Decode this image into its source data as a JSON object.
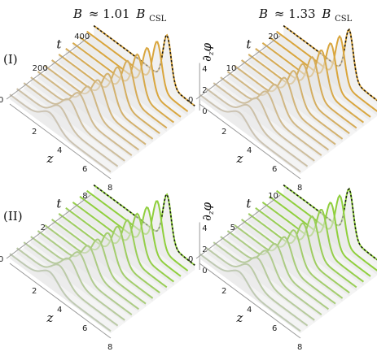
{
  "figure": {
    "column_titles": [
      {
        "var": "B",
        "op": "≈ 1.01",
        "sym": "B",
        "sub": "CSL"
      },
      {
        "var": "B",
        "op": "≈ 1.33",
        "sym": "B",
        "sub": "CSL"
      }
    ],
    "row_labels": [
      "(I)",
      "(II)"
    ]
  },
  "colors": {
    "row1_curve": "#d9a53c",
    "row2_curve": "#8fcf3c",
    "faded": "#c8c8c8",
    "surface": "#e6e6e6",
    "dashed": "#111111"
  },
  "chart_data": [
    {
      "type": "area",
      "panel": "row-I-left",
      "xlabel": "z",
      "ylabel": "t",
      "zlabel": "∂_z φ",
      "z_ticks": [
        "2",
        "4",
        "6",
        "8"
      ],
      "t_ticks": [
        "0",
        "200",
        "400"
      ],
      "v_ticks": [
        "0",
        "2",
        "4"
      ],
      "z_range": [
        0,
        8
      ],
      "t_range": [
        0,
        420
      ],
      "n_curves": 13,
      "peak_final_position": 5.8,
      "peak_final_height": 4.5
    },
    {
      "type": "area",
      "panel": "row-I-right",
      "xlabel": "z",
      "ylabel": "t",
      "zlabel": "∂_z φ",
      "z_ticks": [
        "2",
        "4",
        "6",
        "8"
      ],
      "t_ticks": [
        "0",
        "10",
        "20"
      ],
      "v_ticks": [
        "0",
        "2",
        "4"
      ],
      "z_range": [
        0,
        8
      ],
      "t_range": [
        0,
        34
      ],
      "n_curves": 13,
      "peak_final_position": 5.2,
      "peak_final_height": 4.5
    },
    {
      "type": "area",
      "panel": "row-II-left",
      "xlabel": "z",
      "ylabel": "t",
      "zlabel": "∂_z φ",
      "z_ticks": [
        "2",
        "4",
        "6",
        "8"
      ],
      "t_ticks": [
        "0",
        "2",
        "8"
      ],
      "v_ticks": [
        "0",
        "2",
        "4"
      ],
      "z_range": [
        0,
        8
      ],
      "t_range": [
        0,
        8
      ],
      "n_curves": 13,
      "peak_final_position": 5.8,
      "peak_final_height": 4.5
    },
    {
      "type": "area",
      "panel": "row-II-right",
      "xlabel": "z",
      "ylabel": "t",
      "zlabel": "∂_z φ",
      "z_ticks": [
        "2",
        "4",
        "6",
        "8"
      ],
      "t_ticks": [
        "0",
        "5",
        "10"
      ],
      "v_ticks": [
        "2",
        "4"
      ],
      "z_range": [
        0,
        8
      ],
      "t_range": [
        0,
        11
      ],
      "n_curves": 13,
      "peak_final_position": 5.2,
      "peak_final_height": 4.5
    }
  ]
}
